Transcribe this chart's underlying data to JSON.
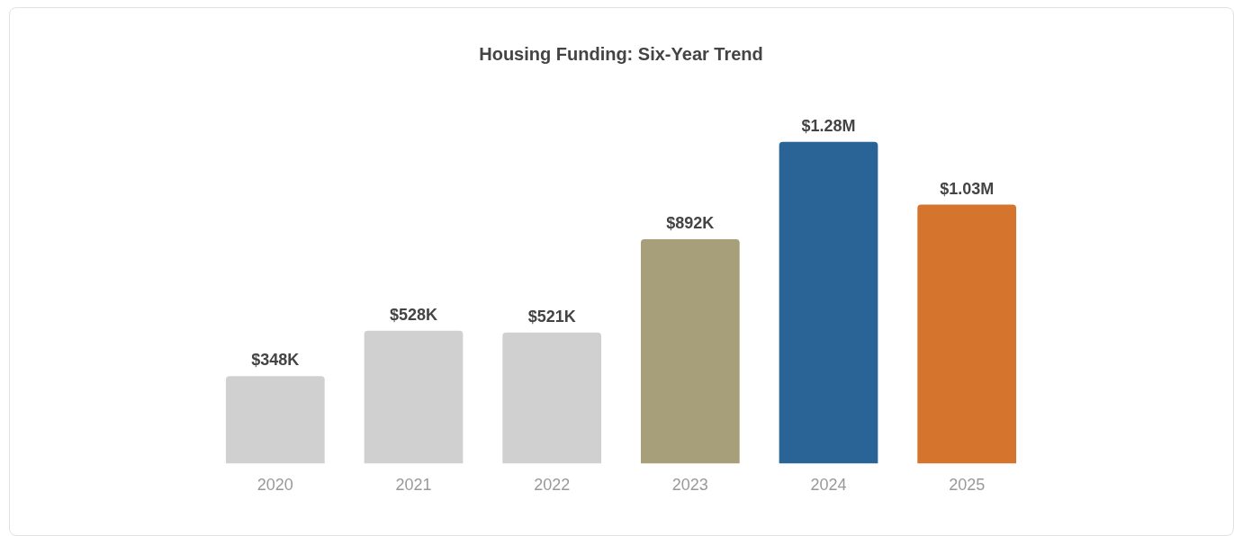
{
  "chart_data": {
    "type": "bar",
    "title": "Housing Funding: Six-Year Trend",
    "categories": [
      "2020",
      "2021",
      "2022",
      "2023",
      "2024",
      "2025"
    ],
    "values": [
      348000,
      528000,
      521000,
      892000,
      1280000,
      1030000
    ],
    "colors": [
      "#d0d0d0",
      "#d0d0d0",
      "#d0d0d0",
      "#a69f7a",
      "#2a6496",
      "#d4742d"
    ],
    "value_labels": [
      "$348K",
      "$528K",
      "$521K",
      "$892K",
      "$1.28M",
      "$1.03M"
    ],
    "grid": false,
    "legend": false,
    "tick_labels": "x"
  }
}
